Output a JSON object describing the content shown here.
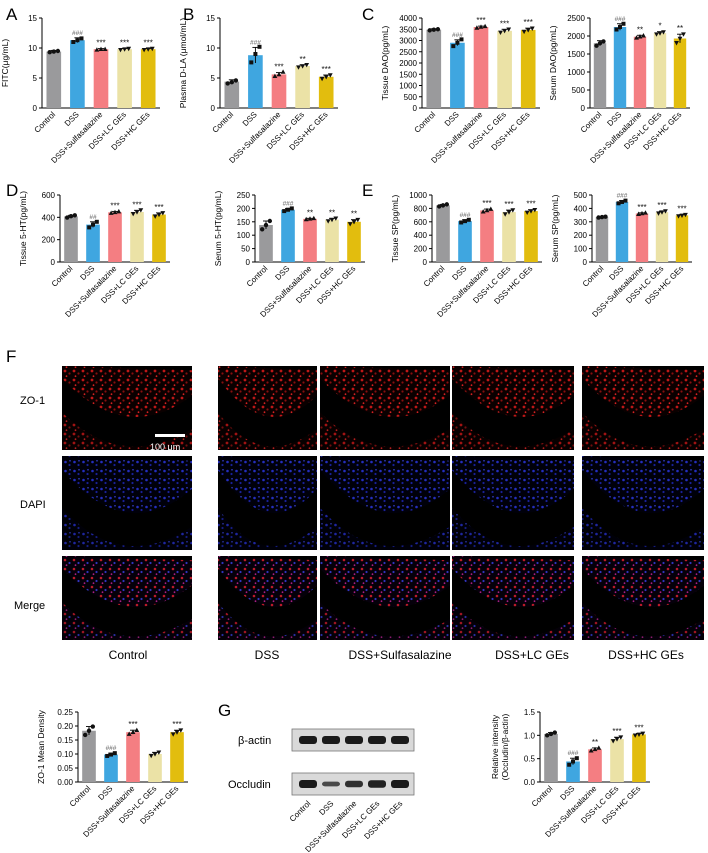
{
  "colors": {
    "control": "#9a9a9c",
    "dss": "#3fa6e0",
    "sulfa": "#f47e82",
    "lc": "#ebe2a6",
    "hc": "#e2bd0e",
    "western_band": "#1a1a1a",
    "western_bg": "#d9d9d9"
  },
  "panel_letters": [
    "A",
    "B",
    "C",
    "D",
    "E",
    "F",
    "G"
  ],
  "group_labels": [
    "Control",
    "DSS",
    "DSS+Sulfasalazine",
    "DSS+LC GEs",
    "DSS+HC GEs"
  ],
  "chart_data": [
    {
      "id": "fitc",
      "type": "bar",
      "panel": "A",
      "ylabel": "FITC(μg/mL)",
      "ylim": [
        0,
        15
      ],
      "ticks": [
        0,
        5,
        10,
        15
      ],
      "values": [
        9.4,
        11.3,
        9.8,
        9.8,
        9.8
      ],
      "errors": [
        0.2,
        0.4,
        0.1,
        0.1,
        0.1
      ],
      "points": [
        [
          9.3,
          9.4,
          9.5
        ],
        [
          11.0,
          11.3,
          11.6
        ],
        [
          9.7,
          9.8,
          9.8
        ],
        [
          9.7,
          9.8,
          9.9
        ],
        [
          9.7,
          9.8,
          9.9
        ]
      ],
      "labels": [
        "",
        "###",
        "***",
        "***",
        "***"
      ]
    },
    {
      "id": "dla",
      "type": "bar",
      "panel": "B",
      "ylabel": "Plasma D-LA (μmol/mL)",
      "ylim": [
        0,
        15
      ],
      "ticks": [
        0,
        5,
        10,
        15
      ],
      "values": [
        4.4,
        8.8,
        5.6,
        7.0,
        5.2
      ],
      "errors": [
        0.3,
        1.3,
        0.3,
        0.2,
        0.3
      ],
      "points": [
        [
          4.1,
          4.3,
          4.6
        ],
        [
          7.6,
          9.0,
          10.2
        ],
        [
          5.3,
          5.6,
          6.0
        ],
        [
          6.8,
          7.0,
          7.2
        ],
        [
          4.9,
          5.2,
          5.5
        ]
      ],
      "labels": [
        "",
        "###",
        "***",
        "**",
        "***"
      ]
    },
    {
      "id": "tdao",
      "type": "bar",
      "panel": "C",
      "ylabel": "Tissue DAO(pg/mL)",
      "ylim": [
        0,
        4000
      ],
      "ticks": [
        0,
        500,
        1000,
        1500,
        2000,
        2500,
        3000,
        3500,
        4000
      ],
      "values": [
        3480,
        2900,
        3600,
        3430,
        3470
      ],
      "errors": [
        40,
        130,
        40,
        70,
        80
      ],
      "points": [
        [
          3450,
          3480,
          3500
        ],
        [
          2750,
          2900,
          3050
        ],
        [
          3560,
          3600,
          3630
        ],
        [
          3360,
          3430,
          3500
        ],
        [
          3400,
          3470,
          3540
        ]
      ],
      "labels": [
        "",
        "###",
        "***",
        "***",
        "***"
      ]
    },
    {
      "id": "sdao",
      "type": "bar",
      "ylabel": "Serum DAO(pg/mL)",
      "ylim": [
        0,
        2500
      ],
      "ticks": [
        0,
        500,
        1000,
        1500,
        2000,
        2500
      ],
      "values": [
        1800,
        2250,
        1980,
        2080,
        1930
      ],
      "errors": [
        70,
        90,
        40,
        40,
        120
      ],
      "points": [
        [
          1730,
          1800,
          1850
        ],
        [
          2180,
          2250,
          2340
        ],
        [
          1950,
          1980,
          2010
        ],
        [
          2050,
          2080,
          2110
        ],
        [
          1810,
          1930,
          2050
        ]
      ],
      "labels": [
        "",
        "###",
        "**",
        "*",
        "**"
      ]
    },
    {
      "id": "t5ht",
      "type": "bar",
      "panel": "D",
      "ylabel": "Tissue 5-HT(pg/mL)",
      "ylim": [
        0,
        600
      ],
      "ticks": [
        0,
        200,
        400,
        600
      ],
      "values": [
        408,
        335,
        445,
        448,
        425
      ],
      "errors": [
        10,
        25,
        8,
        15,
        15
      ],
      "points": [
        [
          398,
          410,
          418
        ],
        [
          310,
          335,
          360
        ],
        [
          438,
          445,
          452
        ],
        [
          432,
          448,
          465
        ],
        [
          410,
          425,
          440
        ]
      ],
      "labels": [
        "",
        "##",
        "***",
        "***",
        "***"
      ]
    },
    {
      "id": "s5ht",
      "type": "bar",
      "ylabel": "Serum 5-HT(pg/mL)",
      "ylim": [
        0,
        250
      ],
      "ticks": [
        0,
        50,
        100,
        150,
        200,
        250
      ],
      "values": [
        138,
        195,
        161,
        158,
        150
      ],
      "errors": [
        15,
        5,
        2,
        5,
        8
      ],
      "points": [
        [
          122,
          138,
          153
        ],
        [
          190,
          195,
          200
        ],
        [
          159,
          161,
          163
        ],
        [
          153,
          158,
          163
        ],
        [
          142,
          150,
          158
        ]
      ],
      "labels": [
        "",
        "###",
        "**",
        "**",
        "**"
      ]
    },
    {
      "id": "tsp",
      "type": "bar",
      "panel": "E",
      "ylabel": "Tissue SP(pg/mL)",
      "ylim": [
        0,
        1000
      ],
      "ticks": [
        0,
        200,
        400,
        600,
        800,
        1000
      ],
      "values": [
        845,
        610,
        770,
        745,
        760
      ],
      "errors": [
        15,
        20,
        20,
        30,
        20
      ],
      "points": [
        [
          830,
          845,
          860
        ],
        [
          590,
          610,
          630
        ],
        [
          750,
          770,
          790
        ],
        [
          715,
          745,
          775
        ],
        [
          740,
          760,
          780
        ]
      ],
      "labels": [
        "",
        "###",
        "***",
        "***",
        "***"
      ]
    },
    {
      "id": "ssp",
      "type": "bar",
      "ylabel": "Serum SP(pg/mL)",
      "ylim": [
        0,
        500
      ],
      "ticks": [
        0,
        100,
        200,
        300,
        400,
        500
      ],
      "values": [
        335,
        448,
        362,
        372,
        348
      ],
      "errors": [
        3,
        10,
        5,
        8,
        5
      ],
      "points": [
        [
          332,
          335,
          338
        ],
        [
          438,
          448,
          458
        ],
        [
          357,
          362,
          367
        ],
        [
          364,
          372,
          380
        ],
        [
          343,
          348,
          353
        ]
      ],
      "labels": [
        "",
        "###",
        "***",
        "***",
        "***"
      ]
    },
    {
      "id": "zo1",
      "type": "bar",
      "ylabel": "ZO-1 Mean Density",
      "ylim": [
        0,
        0.25
      ],
      "ticks": [
        0.0,
        0.05,
        0.1,
        0.15,
        0.2,
        0.25
      ],
      "tick_labels": [
        "0.00",
        "0.05",
        "0.10",
        "0.15",
        "0.20",
        "0.25"
      ],
      "values": [
        0.183,
        0.098,
        0.178,
        0.1,
        0.178
      ],
      "errors": [
        0.015,
        0.005,
        0.007,
        0.006,
        0.007
      ],
      "points": [
        [
          0.168,
          0.183,
          0.198
        ],
        [
          0.093,
          0.098,
          0.103
        ],
        [
          0.171,
          0.178,
          0.185
        ],
        [
          0.094,
          0.1,
          0.106
        ],
        [
          0.171,
          0.178,
          0.185
        ]
      ],
      "labels": [
        "",
        "###",
        "***",
        "",
        "***"
      ]
    },
    {
      "id": "occludin",
      "type": "bar",
      "ylabel": "Relative intensity",
      "ylabel2": "(Occludin/β-actin)",
      "ylim": [
        0,
        1.5
      ],
      "ticks": [
        0.0,
        0.5,
        1.0,
        1.5
      ],
      "tick_labels": [
        "0.0",
        "0.5",
        "1.0",
        "1.5"
      ],
      "values": [
        1.03,
        0.44,
        0.7,
        0.92,
        1.02
      ],
      "errors": [
        0.03,
        0.07,
        0.03,
        0.04,
        0.02
      ],
      "points": [
        [
          1.0,
          1.03,
          1.06
        ],
        [
          0.37,
          0.44,
          0.51
        ],
        [
          0.67,
          0.7,
          0.73
        ],
        [
          0.88,
          0.92,
          0.96
        ],
        [
          1.0,
          1.02,
          1.04
        ]
      ],
      "labels": [
        "",
        "###",
        "**",
        "***",
        "***"
      ]
    }
  ],
  "microscopy": {
    "row_labels": [
      "ZO-1",
      "DAPI",
      "Merge"
    ],
    "column_labels": [
      "Control",
      "DSS",
      "DSS+Sulfasalazine",
      "DSS+LC GEs",
      "DSS+HC GEs"
    ],
    "scale_bar": "100 μm",
    "stain_colors": {
      "zo1": "#d41c1c",
      "dapi": "#2a34d8"
    }
  },
  "western": {
    "bands": [
      "β-actin",
      "Occludin"
    ],
    "lanes": [
      "Control",
      "DSS",
      "DSS+Sulfasalazine",
      "DSS+LC GEs",
      "DSS+HC GEs"
    ],
    "band_intensity": {
      "actin": [
        1,
        1,
        1,
        1,
        1
      ],
      "occludin": [
        1,
        0.45,
        0.75,
        0.92,
        1
      ]
    }
  }
}
